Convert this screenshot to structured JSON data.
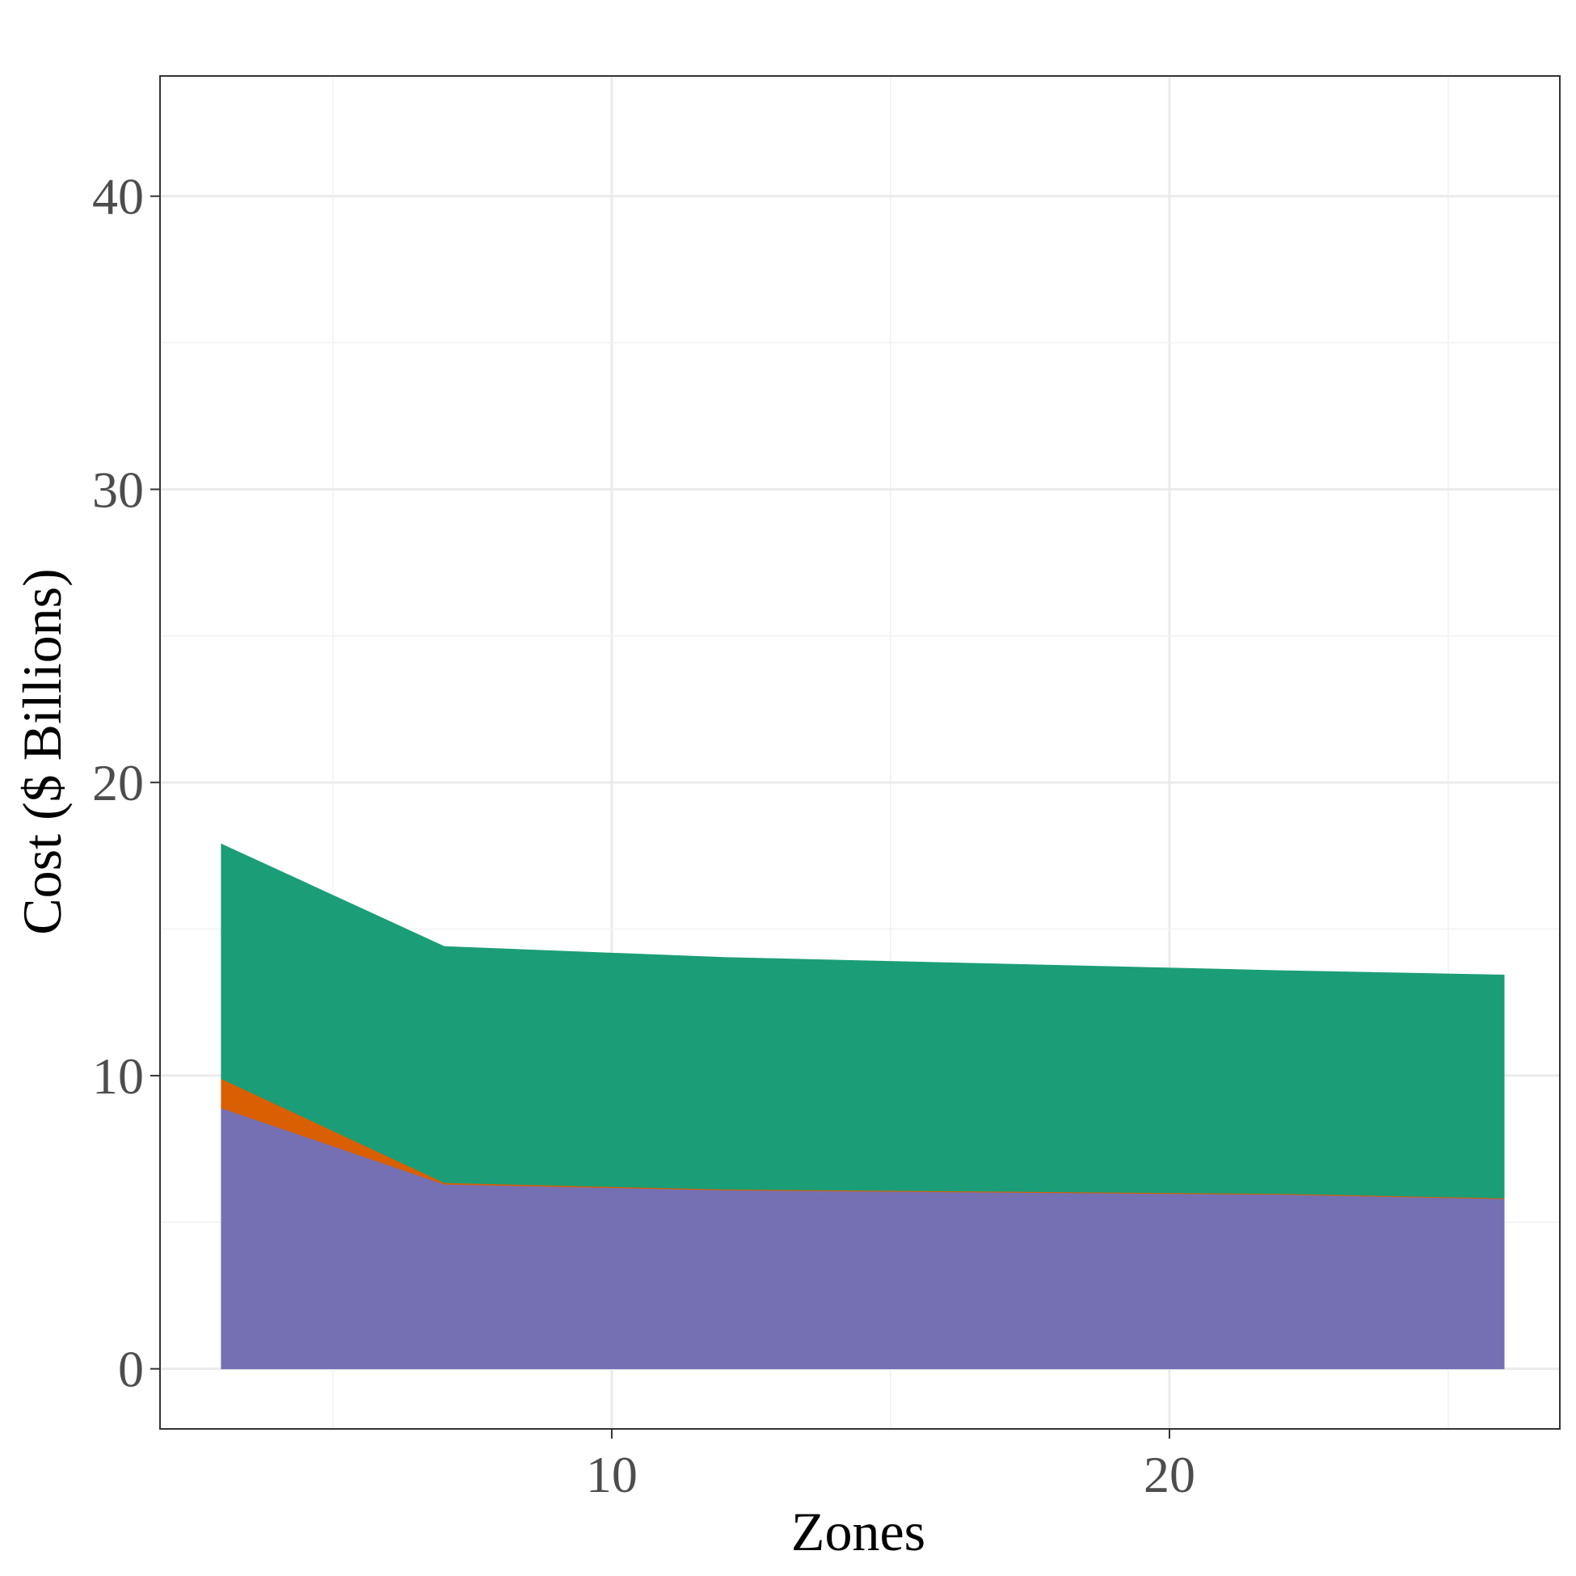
{
  "chart_data": {
    "type": "area",
    "stacked": true,
    "title": "",
    "xlabel": "Zones",
    "ylabel": "Cost ($ Billions)",
    "xlim": [
      1.9,
      27.0
    ],
    "ylim": [
      -2.05,
      44.1
    ],
    "x_ticks": [
      10,
      20
    ],
    "y_ticks": [
      0,
      10,
      20,
      30,
      40
    ],
    "grid": true,
    "legend": "none",
    "x": [
      3,
      7,
      12,
      22,
      26
    ],
    "series": [
      {
        "color": "#7570b3",
        "values": [
          8.9,
          6.3,
          6.1,
          5.95,
          5.8
        ]
      },
      {
        "color": "#d95f02",
        "values": [
          1.0,
          0.05,
          0.03,
          0.03,
          0.03
        ]
      },
      {
        "color": "#1b9e77",
        "values": [
          8.0,
          8.05,
          7.9,
          7.6,
          7.6
        ]
      }
    ]
  },
  "colors": {
    "panel_border": "#333333",
    "grid_major": "#ebebeb",
    "grid_minor": "#f2f2f2",
    "tick_text": "#4d4d4d"
  }
}
